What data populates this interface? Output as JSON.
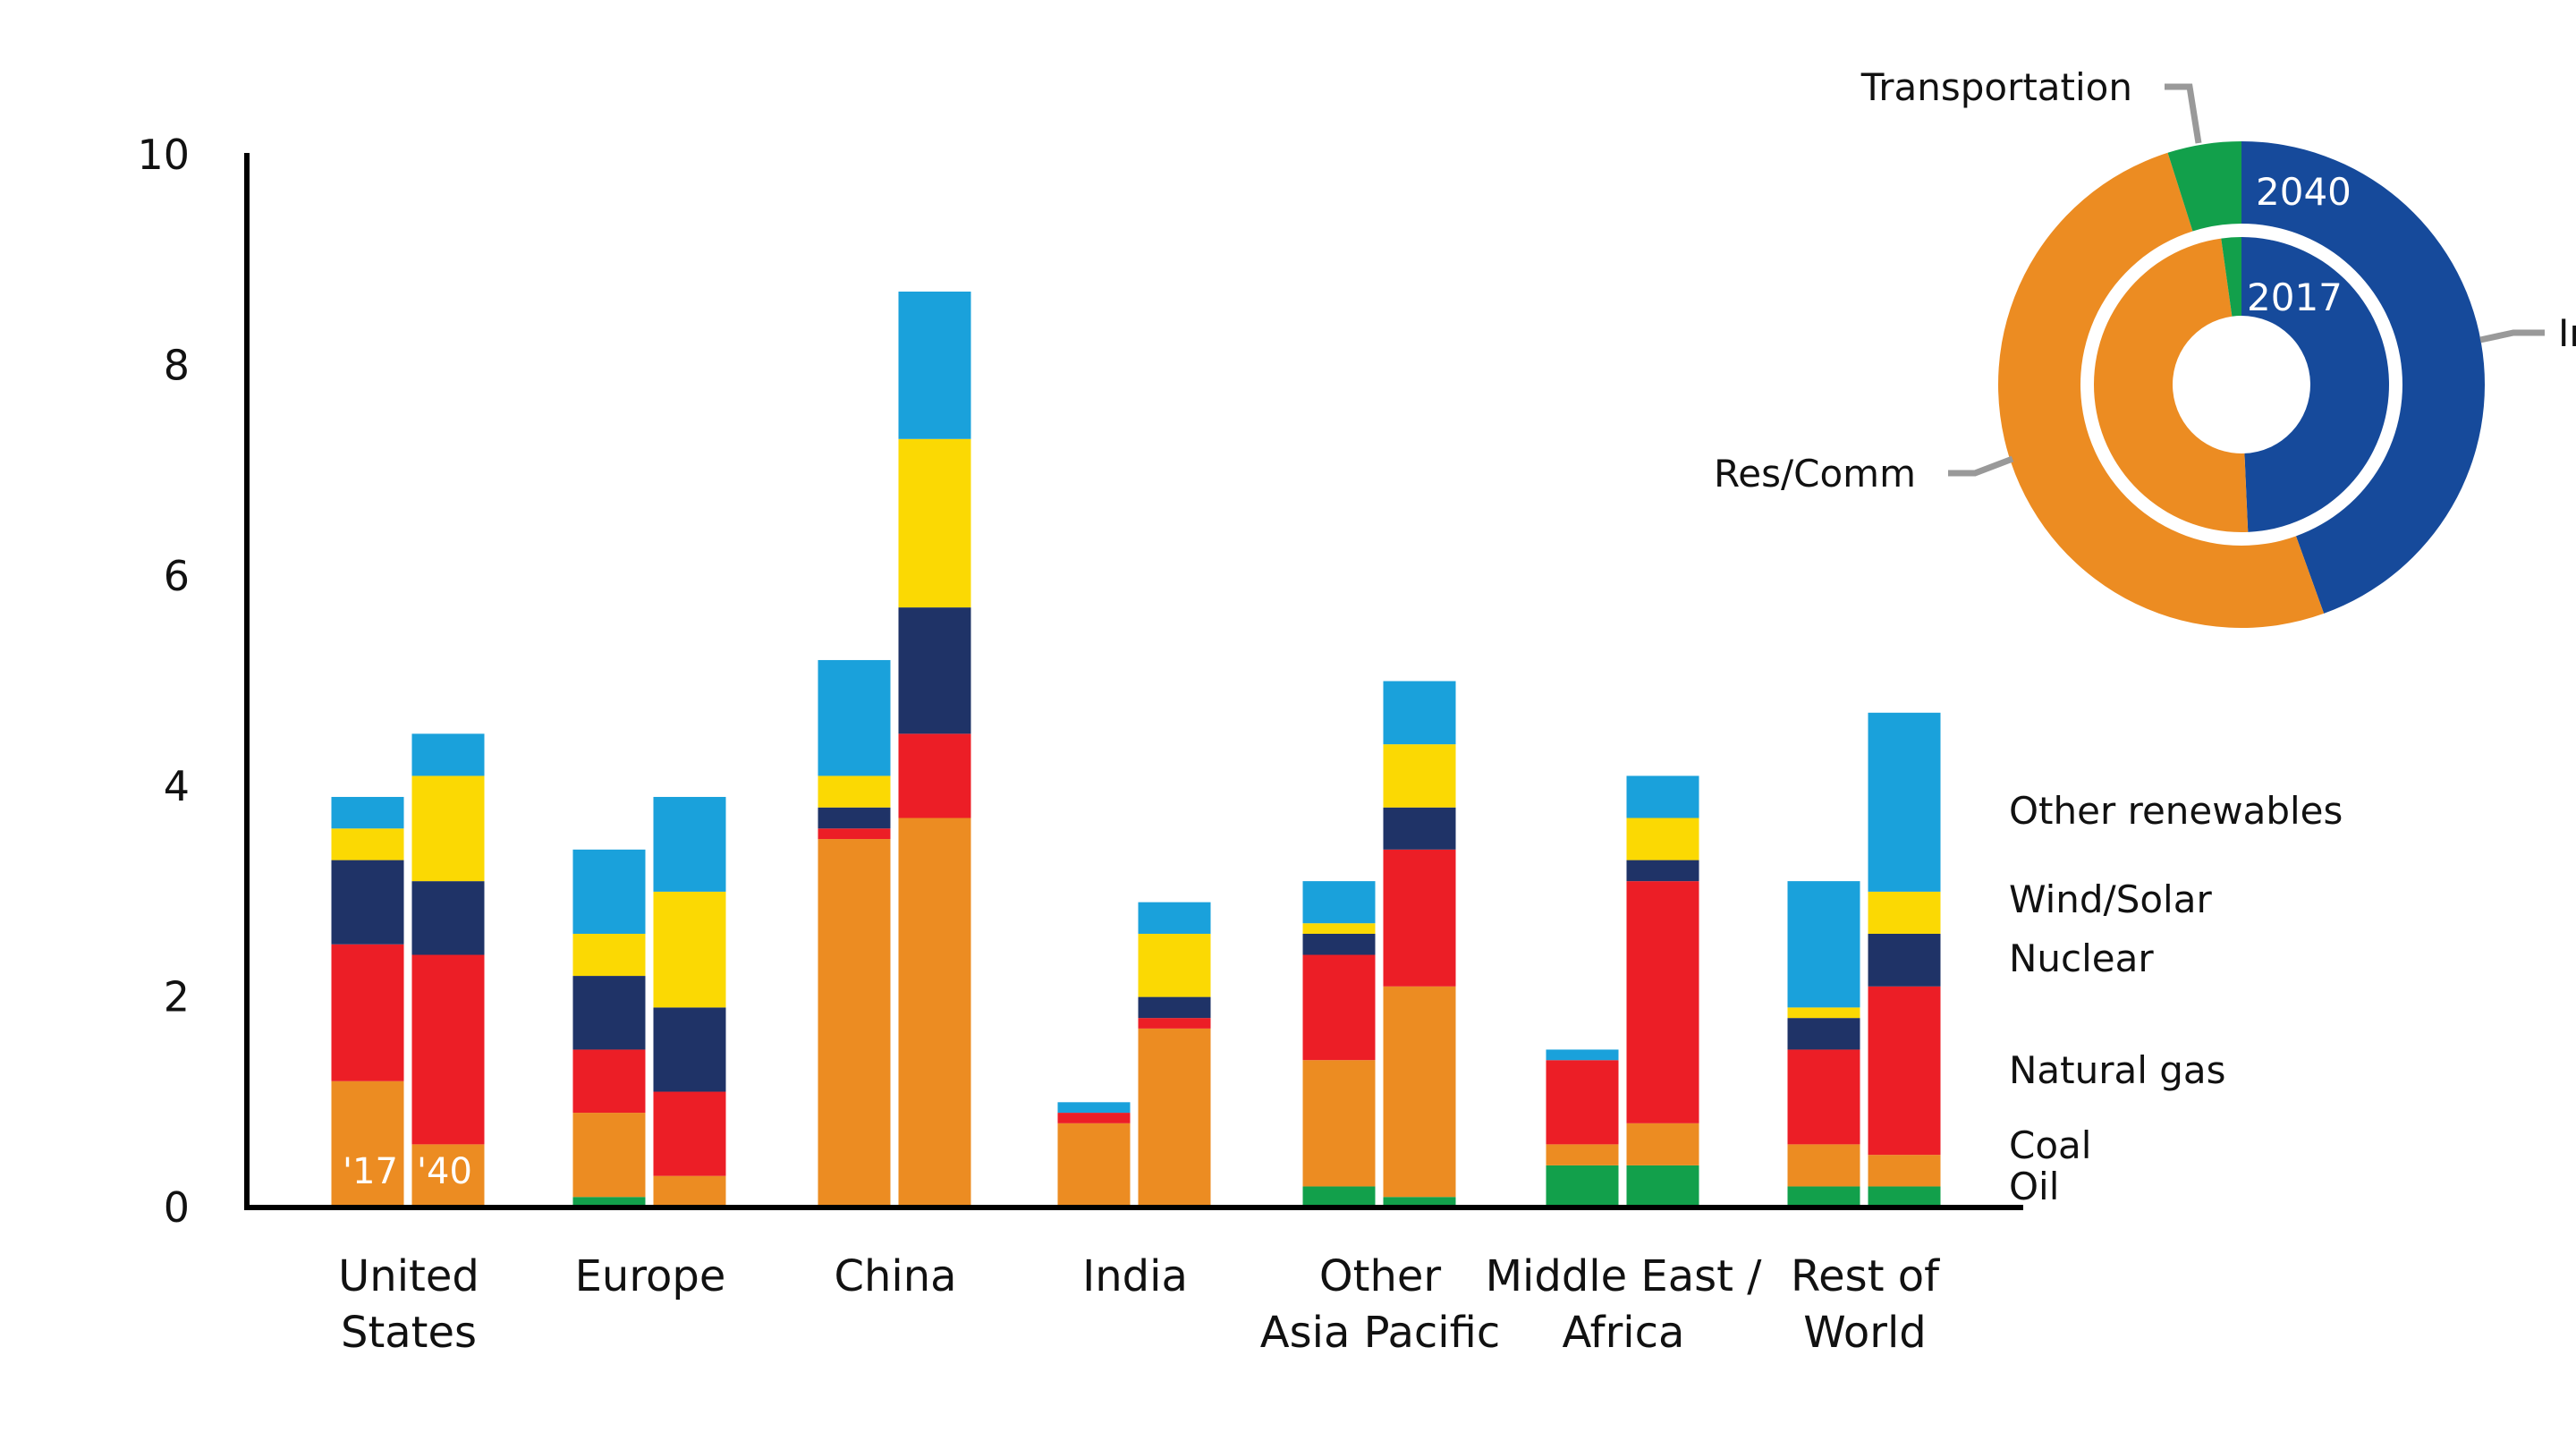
{
  "chart_data": [
    {
      "type": "bar",
      "stacked": true,
      "title": "",
      "xlabel": "",
      "ylabel": "",
      "ylim": [
        0,
        10
      ],
      "yticks": [
        "0",
        "2",
        "4",
        "6",
        "8",
        "10"
      ],
      "grid": false,
      "legend_position": "right",
      "categories": [
        "United States",
        "Europe",
        "China",
        "India",
        "Other Asia Pacific",
        "Middle East / Africa",
        "Rest of World"
      ],
      "category_lines": [
        [
          "United",
          "States"
        ],
        [
          "Europe"
        ],
        [
          "China"
        ],
        [
          "India"
        ],
        [
          "Other",
          "Asia Pacific"
        ],
        [
          "Middle East /",
          "Africa"
        ],
        [
          "Rest of",
          "World"
        ]
      ],
      "periods": [
        "2017",
        "2040"
      ],
      "period_labels": [
        "'17",
        "'40"
      ],
      "series": [
        {
          "name": "Oil",
          "color": "#12a04b",
          "values_2017": [
            0.0,
            0.1,
            0.0,
            0.0,
            0.2,
            0.4,
            0.2
          ],
          "values_2040": [
            0.0,
            0.0,
            0.0,
            0.0,
            0.1,
            0.4,
            0.2
          ]
        },
        {
          "name": "Coal",
          "color": "#ec8c22",
          "values_2017": [
            1.2,
            0.8,
            3.5,
            0.8,
            1.2,
            0.2,
            0.4
          ],
          "values_2040": [
            0.6,
            0.3,
            3.7,
            1.7,
            2.0,
            0.4,
            0.3
          ]
        },
        {
          "name": "Natural gas",
          "color": "#ec1e26",
          "values_2017": [
            1.3,
            0.6,
            0.1,
            0.1,
            1.0,
            0.8,
            0.9
          ],
          "values_2040": [
            1.8,
            0.8,
            0.8,
            0.1,
            1.3,
            2.3,
            1.6
          ]
        },
        {
          "name": "Nuclear",
          "color": "#1f3367",
          "values_2017": [
            0.8,
            0.7,
            0.2,
            0.0,
            0.2,
            0.0,
            0.3
          ],
          "values_2040": [
            0.7,
            0.8,
            1.2,
            0.2,
            0.4,
            0.2,
            0.5
          ]
        },
        {
          "name": "Wind/Solar",
          "color": "#fbd903",
          "values_2017": [
            0.3,
            0.4,
            0.3,
            0.0,
            0.1,
            0.0,
            0.1
          ],
          "values_2040": [
            1.0,
            1.1,
            1.6,
            0.6,
            0.6,
            0.4,
            0.4
          ]
        },
        {
          "name": "Other renewables",
          "color": "#1aa1db",
          "values_2017": [
            0.3,
            0.8,
            1.1,
            0.1,
            0.4,
            0.1,
            1.2
          ],
          "values_2040": [
            0.4,
            0.9,
            1.4,
            0.3,
            0.6,
            0.4,
            1.7
          ]
        }
      ],
      "legend_order": [
        "Other renewables",
        "Wind/Solar",
        "Nuclear",
        "Natural gas",
        "Coal",
        "Oil"
      ]
    },
    {
      "type": "pie",
      "variant": "nested-donut",
      "title": "",
      "rings": [
        {
          "name": "2040",
          "label": "2040",
          "position": "outer",
          "slices": [
            {
              "name": "Industrial",
              "value": 44.5,
              "color": "#164a9b"
            },
            {
              "name": "Res/Comm",
              "value": 50.6,
              "color": "#ec8c22"
            },
            {
              "name": "Transportation",
              "value": 4.9,
              "color": "#12a04b"
            }
          ]
        },
        {
          "name": "2017",
          "label": "2017",
          "position": "inner",
          "slices": [
            {
              "name": "Industrial",
              "value": 49.3,
              "color": "#164a9b"
            },
            {
              "name": "Res/Comm",
              "value": 48.5,
              "color": "#ec8c22"
            },
            {
              "name": "Transportation",
              "value": 2.2,
              "color": "#12a04b"
            }
          ]
        }
      ],
      "callouts": {
        "transportation": "Transportation",
        "res_comm": "Res/Comm",
        "industrial_visible": "In"
      }
    }
  ]
}
